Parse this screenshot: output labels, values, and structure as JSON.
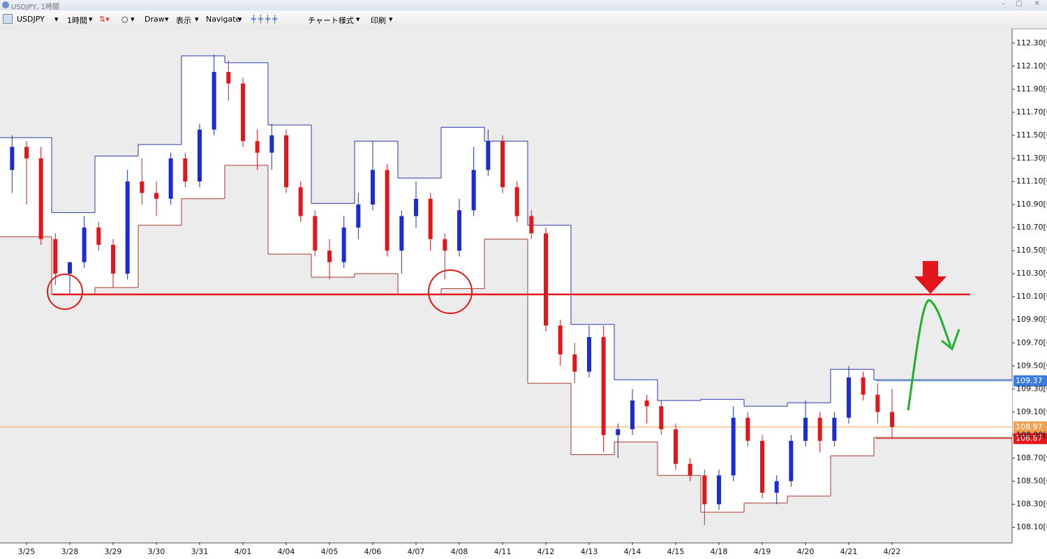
{
  "window": {
    "title": "USDJPY, 1時間"
  },
  "toolbar": {
    "symbol": "USDJPY",
    "timeframe": "1時間",
    "draw": "Draw",
    "view": "表示",
    "navigate": "Navigate",
    "chart_style": "チャート様式",
    "print": "印刷"
  },
  "chart_data": {
    "type": "candlestick",
    "categories": [
      "3/25",
      "3/28",
      "3/29",
      "3/30",
      "3/31",
      "4/01",
      "4/04",
      "4/05",
      "4/06",
      "4/07",
      "4/08",
      "4/11",
      "4/12",
      "4/13",
      "4/14",
      "4/15",
      "4/18",
      "4/19",
      "4/20",
      "4/21",
      "4/22"
    ],
    "open": [
      111.2,
      111.4,
      111.3,
      110.6,
      110.3,
      110.4,
      110.7,
      110.55,
      110.3,
      111.1,
      111.0,
      110.95,
      111.3,
      111.1,
      111.55,
      112.05,
      111.95,
      111.45,
      111.35,
      111.5,
      111.05,
      110.8,
      110.5,
      110.4,
      110.7,
      110.9,
      111.2,
      110.5,
      110.8,
      110.95,
      110.6,
      110.5,
      110.85,
      111.2,
      111.45,
      111.05,
      110.8,
      110.65,
      109.85,
      109.6,
      109.45,
      109.75,
      108.9,
      108.95,
      109.2,
      109.15,
      108.95,
      108.65,
      108.55,
      108.3,
      108.55,
      109.05,
      108.85,
      108.4,
      108.5,
      108.85,
      109.05,
      108.85,
      109.05,
      109.4,
      109.25,
      109.1
    ],
    "high": [
      111.5,
      111.45,
      111.4,
      110.65,
      110.4,
      110.8,
      110.75,
      110.6,
      111.2,
      111.3,
      111.1,
      111.35,
      111.35,
      111.6,
      112.2,
      112.15,
      112.0,
      111.55,
      111.6,
      111.55,
      111.1,
      110.85,
      110.6,
      110.8,
      111.0,
      111.45,
      111.25,
      110.85,
      111.1,
      111.0,
      110.65,
      110.95,
      111.4,
      111.55,
      111.5,
      111.1,
      110.85,
      110.7,
      109.9,
      109.7,
      109.85,
      109.85,
      109.0,
      109.3,
      109.25,
      109.2,
      109.0,
      108.7,
      108.6,
      108.6,
      109.15,
      109.1,
      108.9,
      108.55,
      108.9,
      109.2,
      109.1,
      109.1,
      109.5,
      109.45,
      109.35,
      109.3
    ],
    "low": [
      111.0,
      110.9,
      110.55,
      110.2,
      110.12,
      110.35,
      110.5,
      110.18,
      110.25,
      110.9,
      110.8,
      110.9,
      111.05,
      111.05,
      111.5,
      111.8,
      111.4,
      111.2,
      111.2,
      111.0,
      110.75,
      110.45,
      110.25,
      110.35,
      110.6,
      110.85,
      110.45,
      110.3,
      110.7,
      110.5,
      110.25,
      110.45,
      110.8,
      111.15,
      111.0,
      110.75,
      110.6,
      109.8,
      109.5,
      109.35,
      109.4,
      108.75,
      108.7,
      108.9,
      109.0,
      108.9,
      108.6,
      108.5,
      108.12,
      108.25,
      108.5,
      108.8,
      108.35,
      108.3,
      108.45,
      108.8,
      108.75,
      108.8,
      109.0,
      109.2,
      109.0,
      108.87
    ],
    "close": [
      111.4,
      111.3,
      110.6,
      110.3,
      110.4,
      110.7,
      110.55,
      110.3,
      111.1,
      111.0,
      110.95,
      111.3,
      111.1,
      111.55,
      112.05,
      111.95,
      111.45,
      111.35,
      111.5,
      111.05,
      110.8,
      110.5,
      110.4,
      110.7,
      110.9,
      111.2,
      110.5,
      110.8,
      110.95,
      110.6,
      110.5,
      110.85,
      111.2,
      111.45,
      111.05,
      110.8,
      110.65,
      109.85,
      109.6,
      109.45,
      109.75,
      108.9,
      108.95,
      109.2,
      109.15,
      108.95,
      108.65,
      108.55,
      108.3,
      108.55,
      109.05,
      108.85,
      108.4,
      108.5,
      108.85,
      109.05,
      108.85,
      109.05,
      109.4,
      109.25,
      109.1,
      108.97
    ],
    "up_color": "#1c2bd6",
    "down_color": "#e3161b",
    "channel": {
      "high": [
        111.48,
        110.83,
        111.32,
        111.42,
        112.19,
        112.13,
        111.59,
        110.91,
        111.45,
        111.13,
        111.57,
        111.45,
        110.72,
        109.86,
        109.38,
        109.2,
        109.21,
        109.15,
        109.18,
        109.47,
        109.38
      ],
      "low": [
        110.62,
        110.12,
        110.18,
        110.72,
        110.95,
        111.24,
        110.47,
        110.27,
        110.3,
        110.12,
        110.17,
        110.6,
        109.35,
        108.73,
        108.84,
        108.55,
        108.23,
        108.31,
        108.37,
        108.72,
        108.88
      ],
      "high_color": "#2b3aa8",
      "low_color": "#a33a2c"
    },
    "support": {
      "value": 110.12,
      "color": "#e3161b"
    },
    "levels": [
      {
        "value": 109.37,
        "label": "109.37",
        "color": "#3a7de0"
      },
      {
        "value": 108.97,
        "label": "108.97",
        "color": "#f0a050"
      },
      {
        "value": 108.87,
        "label": "108.87",
        "color": "#e3161b"
      }
    ],
    "ylim": [
      107.97,
      112.42
    ],
    "yticks": [
      {
        "value": 112.3,
        "label": "112.30[0"
      },
      {
        "value": 112.1,
        "label": "112.10[0"
      },
      {
        "value": 111.9,
        "label": "111.90[0"
      },
      {
        "value": 111.7,
        "label": "111.70[0"
      },
      {
        "value": 111.5,
        "label": "111.50[0"
      },
      {
        "value": 111.3,
        "label": "111.30[0"
      },
      {
        "value": 111.1,
        "label": "111.10[0"
      },
      {
        "value": 110.9,
        "label": "110.90[0"
      },
      {
        "value": 110.7,
        "label": "110.70[0"
      },
      {
        "value": 110.5,
        "label": "110.50[0"
      },
      {
        "value": 110.3,
        "label": "110.30[0"
      },
      {
        "value": 110.1,
        "label": "110.10[0"
      },
      {
        "value": 109.9,
        "label": "109.90[0"
      },
      {
        "value": 109.7,
        "label": "109.70[0"
      },
      {
        "value": 109.5,
        "label": "109.50[0"
      },
      {
        "value": 109.3,
        "label": "109.30[0"
      },
      {
        "value": 109.1,
        "label": "109.10[0"
      },
      {
        "value": 108.9,
        "label": "108.90[0"
      },
      {
        "value": 108.7,
        "label": "108.70[0"
      },
      {
        "value": 108.5,
        "label": "108.50[0"
      },
      {
        "value": 108.3,
        "label": "108.30[0"
      },
      {
        "value": 108.1,
        "label": "108.10[0"
      }
    ]
  }
}
